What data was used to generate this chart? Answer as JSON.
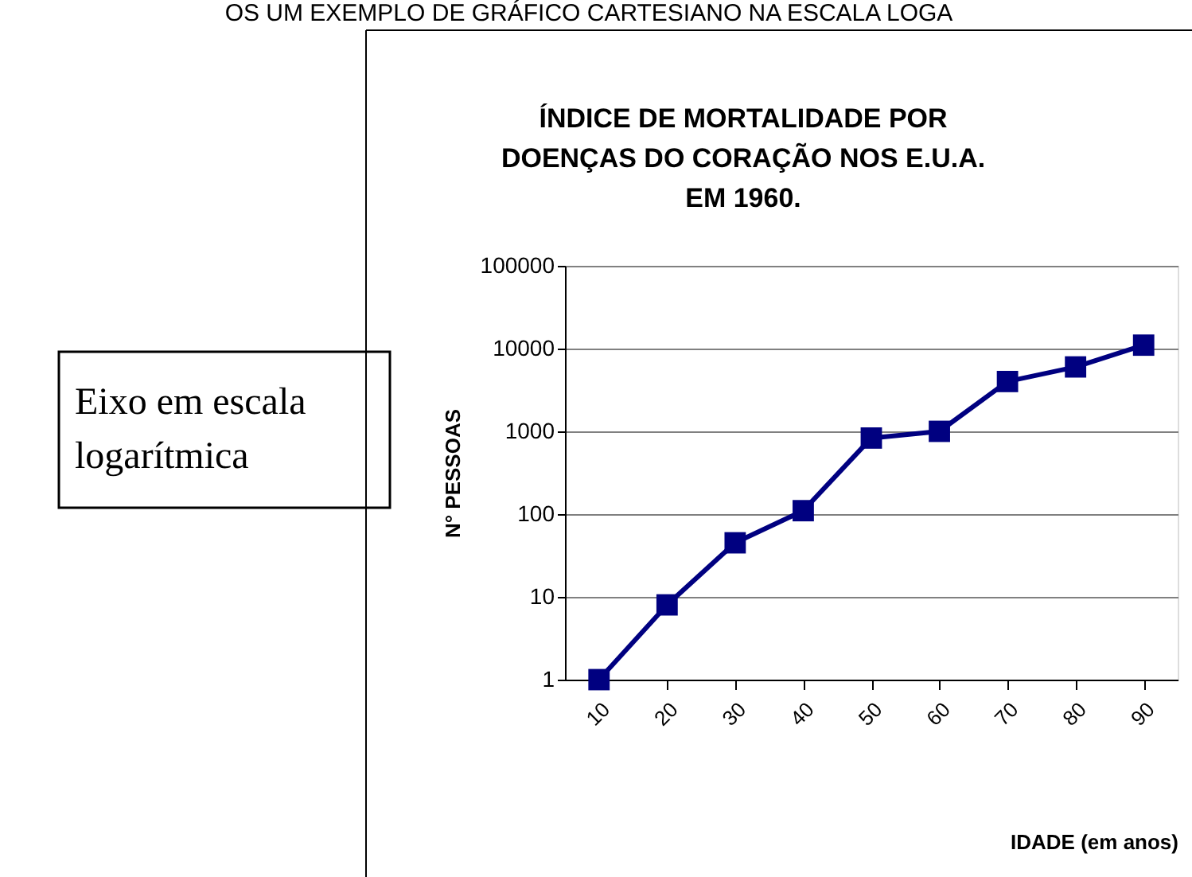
{
  "chart_data": {
    "type": "line",
    "title": "ÍNDICE DE MORTALIDADE POR DOENÇAS DO CORAÇÃO NOS E.U.A. EM 1960.",
    "xlabel": "IDADE (em anos)",
    "ylabel": "N° PESSOAS",
    "annotations": [
      "OS UM EXEMPLO DE GRÁFICO CARTESIANO NA ESCALA LOGA",
      "Eixo em escala logarítmica"
    ],
    "categories": [
      "10",
      "20",
      "30",
      "40",
      "50",
      "60",
      "70",
      "80",
      "90"
    ],
    "series": [
      {
        "color": "#000080",
        "values": [
          1,
          8,
          45,
          110,
          830,
          1000,
          4000,
          6000,
          11000
        ]
      }
    ],
    "log": "y",
    "ylim": [
      1,
      100000
    ],
    "yticks": [
      1,
      10,
      100,
      1000,
      10000,
      100000
    ],
    "grid": "y",
    "marker": "square",
    "line_style": "solid",
    "legend": false
  }
}
